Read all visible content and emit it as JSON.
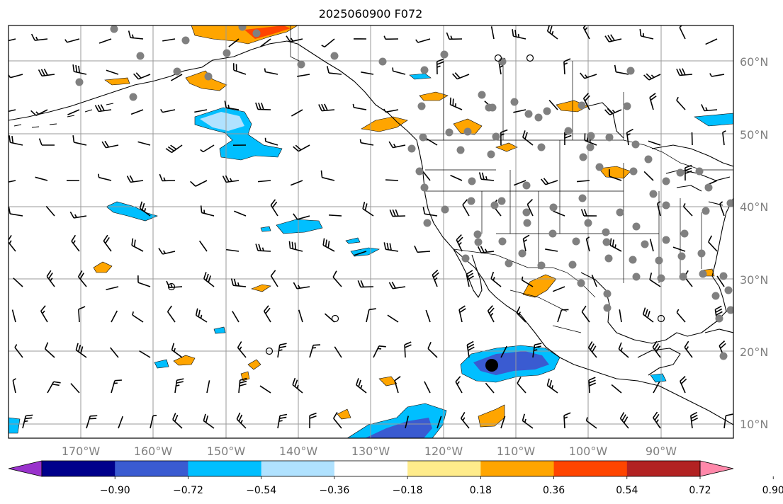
{
  "title": "2025060900 F072",
  "lat_labels": [
    "60°N",
    "50°N",
    "40°N",
    "30°N",
    "20°N",
    "10°N"
  ],
  "lon_labels": [
    "170°W",
    "160°W",
    "150°W",
    "140°W",
    "130°W",
    "120°W",
    "110°W",
    "100°W",
    "90°W"
  ],
  "colorbar": {
    "tick_labels": [
      "−0.90",
      "−0.72",
      "−0.54",
      "−0.36",
      "−0.18",
      "0.18",
      "0.36",
      "0.54",
      "0.72",
      "0.90"
    ],
    "colors": [
      "#9932CC",
      "#00008B",
      "#3A5BD1",
      "#00BFFF",
      "#B0E2FF",
      "#FFFFFF",
      "#FFEC8B",
      "#FFA500",
      "#FF4500",
      "#B22222",
      "#FF88AA"
    ]
  },
  "colors": {
    "gridline": "#9a9a9a",
    "station_dot": "#808080",
    "coastline": "#000000"
  }
}
